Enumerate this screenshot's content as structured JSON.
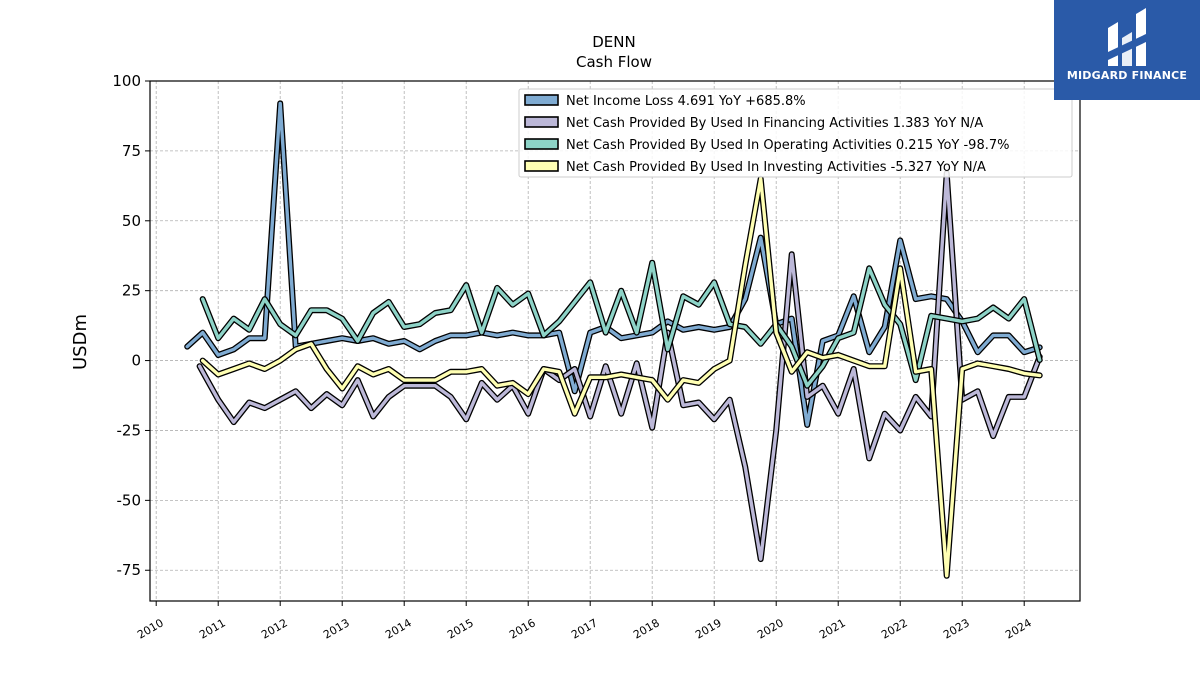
{
  "chart_data": {
    "type": "line",
    "title": "DENN",
    "subtitle": "Cash Flow",
    "xlabel": "",
    "ylabel": "USDm",
    "xlim": [
      2009.9,
      2024.9
    ],
    "ylim": [
      -86,
      100
    ],
    "yticks": [
      100,
      75,
      50,
      25,
      0,
      -25,
      -50,
      -75
    ],
    "xticks": [
      "2010",
      "2011",
      "2012",
      "2013",
      "2014",
      "2015",
      "2016",
      "2017",
      "2018",
      "2019",
      "2020",
      "2021",
      "2022",
      "2023",
      "2024"
    ],
    "grid": true,
    "legend_position": "top-right",
    "series": [
      {
        "name": "Net Income Loss  4.691 YoY +685.8%",
        "color": "#7fabd2",
        "x": [
          2010.5,
          2010.75,
          2011.0,
          2011.25,
          2011.5,
          2011.75,
          2012.0,
          2012.25,
          2012.5,
          2012.75,
          2013.0,
          2013.25,
          2013.5,
          2013.75,
          2014.0,
          2014.25,
          2014.5,
          2014.75,
          2015.0,
          2015.25,
          2015.5,
          2015.75,
          2016.0,
          2016.25,
          2016.5,
          2016.75,
          2017.0,
          2017.25,
          2017.5,
          2017.75,
          2018.0,
          2018.25,
          2018.5,
          2018.75,
          2019.0,
          2019.25,
          2019.5,
          2019.75,
          2020.0,
          2020.25,
          2020.5,
          2020.75,
          2021.0,
          2021.25,
          2021.5,
          2021.75,
          2022.0,
          2022.25,
          2022.5,
          2022.75,
          2023.0,
          2023.25,
          2023.5,
          2023.75,
          2024.0,
          2024.25
        ],
        "values": [
          5,
          10,
          2,
          4,
          8,
          8,
          92,
          5,
          6,
          7,
          8,
          7,
          8,
          6,
          7,
          4,
          7,
          9,
          9,
          10,
          9,
          10,
          9,
          9,
          10,
          -11,
          10,
          12,
          8,
          9,
          10,
          14,
          11,
          12,
          11,
          12,
          22,
          44,
          13,
          15,
          -23,
          7,
          9,
          23,
          3,
          12,
          43,
          22,
          23,
          22,
          14,
          3,
          9,
          9,
          3,
          4.7
        ]
      },
      {
        "name": "Net Cash Provided By Used In Financing Activities  1.383 YoY N/A",
        "color": "#bcb8d8",
        "x": [
          2010.7,
          2011.0,
          2011.25,
          2011.5,
          2011.75,
          2012.0,
          2012.25,
          2012.5,
          2012.75,
          2013.0,
          2013.25,
          2013.5,
          2013.75,
          2014.0,
          2014.25,
          2014.5,
          2014.75,
          2015.0,
          2015.25,
          2015.5,
          2015.75,
          2016.0,
          2016.25,
          2016.5,
          2016.75,
          2017.0,
          2017.25,
          2017.5,
          2017.75,
          2018.0,
          2018.25,
          2018.5,
          2018.75,
          2019.0,
          2019.25,
          2019.5,
          2019.75,
          2020.0,
          2020.25,
          2020.5,
          2020.75,
          2021.0,
          2021.25,
          2021.5,
          2021.75,
          2022.0,
          2022.25,
          2022.5,
          2022.75,
          2023.0,
          2023.25,
          2023.5,
          2023.75,
          2024.0,
          2024.25
        ],
        "values": [
          -2,
          -14,
          -22,
          -15,
          -17,
          -14,
          -11,
          -17,
          -12,
          -16,
          -7,
          -20,
          -13,
          -9,
          -9,
          -9,
          -13,
          -21,
          -8,
          -14,
          -9,
          -19,
          -3,
          -7,
          -3,
          -20,
          -2,
          -19,
          -1,
          -24,
          10,
          -16,
          -15,
          -21,
          -14,
          -38,
          -71,
          -25,
          38,
          -13,
          -9,
          -19,
          -3,
          -35,
          -19,
          -25,
          -13,
          -20,
          67,
          -14,
          -11,
          -27,
          -13,
          -13,
          1.4
        ]
      },
      {
        "name": "Net Cash Provided By Used In Operating Activities  0.215 YoY -98.7%",
        "color": "#8dd3c7",
        "x": [
          2010.75,
          2011.0,
          2011.25,
          2011.5,
          2011.75,
          2012.0,
          2012.25,
          2012.5,
          2012.75,
          2013.0,
          2013.25,
          2013.5,
          2013.75,
          2014.0,
          2014.25,
          2014.5,
          2014.75,
          2015.0,
          2015.25,
          2015.5,
          2015.75,
          2016.0,
          2016.25,
          2016.5,
          2016.75,
          2017.0,
          2017.25,
          2017.5,
          2017.75,
          2018.0,
          2018.25,
          2018.5,
          2018.75,
          2019.0,
          2019.25,
          2019.5,
          2019.75,
          2020.0,
          2020.25,
          2020.5,
          2020.75,
          2021.0,
          2021.25,
          2021.5,
          2021.75,
          2022.0,
          2022.25,
          2022.5,
          2022.75,
          2023.0,
          2023.25,
          2023.5,
          2023.75,
          2024.0,
          2024.25
        ],
        "values": [
          22,
          8,
          15,
          11,
          22,
          13,
          9,
          18,
          18,
          15,
          7,
          17,
          21,
          12,
          13,
          17,
          18,
          27,
          10,
          26,
          20,
          24,
          9,
          14,
          21,
          28,
          10,
          25,
          10,
          35,
          4,
          23,
          20,
          28,
          13,
          12,
          6,
          13,
          5,
          -9,
          -2,
          8,
          10,
          33,
          20,
          13,
          -7,
          16,
          15,
          14,
          15,
          19,
          15,
          22,
          0.2
        ]
      },
      {
        "name": "Net Cash Provided By Used In Investing Activities  -5.327 YoY N/A",
        "color": "#ffffb3",
        "x": [
          2010.75,
          2011.0,
          2011.25,
          2011.5,
          2011.75,
          2012.0,
          2012.25,
          2012.5,
          2012.75,
          2013.0,
          2013.25,
          2013.5,
          2013.75,
          2014.0,
          2014.25,
          2014.5,
          2014.75,
          2015.0,
          2015.25,
          2015.5,
          2015.75,
          2016.0,
          2016.25,
          2016.5,
          2016.75,
          2017.0,
          2017.25,
          2017.5,
          2017.75,
          2018.0,
          2018.25,
          2018.5,
          2018.75,
          2019.0,
          2019.25,
          2019.5,
          2019.75,
          2020.0,
          2020.25,
          2020.5,
          2020.75,
          2021.0,
          2021.25,
          2021.5,
          2021.75,
          2022.0,
          2022.25,
          2022.5,
          2022.75,
          2023.0,
          2023.25,
          2023.5,
          2023.75,
          2024.0,
          2024.25
        ],
        "values": [
          0,
          -5,
          -3,
          -1,
          -3,
          0,
          4,
          6,
          -3,
          -10,
          -2,
          -5,
          -3,
          -7,
          -7,
          -7,
          -4,
          -4,
          -3,
          -9,
          -8,
          -12,
          -3,
          -4,
          -19,
          -6,
          -6,
          -5,
          -6,
          -7,
          -14,
          -7,
          -8,
          -3,
          0,
          34,
          65,
          10,
          -4,
          3,
          1,
          2,
          0,
          -2,
          -2,
          33,
          -4,
          -3,
          -77,
          -3,
          -1,
          -2,
          -3,
          -4.6,
          -5.3
        ]
      }
    ]
  },
  "logo": {
    "text": "MIDGARD FINANCE"
  }
}
